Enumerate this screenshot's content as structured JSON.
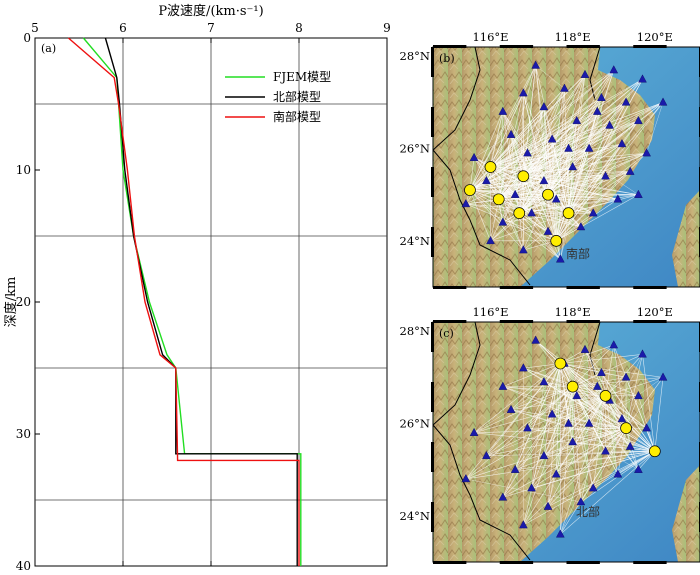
{
  "chart_data": [
    {
      "type": "line",
      "panel_label": "(a)",
      "xlabel": "P波速度/(km·s⁻¹)",
      "ylabel": "深度/km",
      "xlim": [
        5,
        9
      ],
      "ylim": [
        0,
        40
      ],
      "y_inverted": true,
      "x_ticks": [
        "5",
        "6",
        "7",
        "8",
        "9"
      ],
      "y_ticks": [
        "0",
        "10",
        "20",
        "30",
        "40"
      ],
      "grid_y": [
        5,
        15,
        25,
        35
      ],
      "grid_x": [
        6,
        7,
        8
      ],
      "legend": "top-right",
      "series": [
        {
          "name": "FJEM模型",
          "color": "#22dd22",
          "points": [
            [
              5.55,
              0
            ],
            [
              5.93,
              3
            ],
            [
              5.95,
              5
            ],
            [
              6.0,
              10
            ],
            [
              6.12,
              15
            ],
            [
              6.3,
              20
            ],
            [
              6.5,
              24
            ],
            [
              6.6,
              25
            ],
            [
              6.7,
              31.5
            ],
            [
              8.02,
              31.5
            ],
            [
              8.02,
              40
            ]
          ]
        },
        {
          "name": "北部模型",
          "color": "#000000",
          "points": [
            [
              5.8,
              0
            ],
            [
              5.93,
              3
            ],
            [
              5.96,
              5
            ],
            [
              6.02,
              10
            ],
            [
              6.12,
              15
            ],
            [
              6.28,
              20
            ],
            [
              6.45,
              24
            ],
            [
              6.6,
              25
            ],
            [
              6.6,
              31.5
            ],
            [
              7.98,
              31.5
            ],
            [
              7.98,
              40
            ]
          ]
        },
        {
          "name": "南部模型",
          "color": "#ee1111",
          "points": [
            [
              5.38,
              0
            ],
            [
              5.9,
              3
            ],
            [
              5.95,
              5
            ],
            [
              6.05,
              10
            ],
            [
              6.13,
              15
            ],
            [
              6.25,
              20
            ],
            [
              6.42,
              24
            ],
            [
              6.6,
              25
            ],
            [
              6.62,
              32
            ],
            [
              8.0,
              32
            ],
            [
              8.0,
              40
            ]
          ]
        }
      ]
    },
    {
      "type": "map",
      "panel_label": "(b)",
      "region_label": "南部",
      "x_ticks": [
        "116°E",
        "118°E",
        "120°E"
      ],
      "y_ticks": [
        "28°N",
        "26°N",
        "24°N"
      ],
      "lon_range": [
        114.6,
        121.1
      ],
      "lat_range": [
        23.0,
        28.2
      ],
      "triangle_color": "#1a1aaa",
      "circle_color": "#ffee00",
      "stations": [
        [
          117.1,
          27.8
        ],
        [
          118.3,
          27.6
        ],
        [
          119.0,
          27.7
        ],
        [
          119.7,
          27.5
        ],
        [
          116.8,
          27.2
        ],
        [
          117.8,
          27.3
        ],
        [
          118.7,
          27.1
        ],
        [
          119.3,
          27.0
        ],
        [
          120.2,
          27.0
        ],
        [
          116.3,
          26.8
        ],
        [
          117.3,
          26.9
        ],
        [
          118.1,
          26.6
        ],
        [
          118.9,
          26.5
        ],
        [
          119.6,
          26.6
        ],
        [
          116.5,
          26.3
        ],
        [
          117.5,
          26.2
        ],
        [
          118.4,
          26.0
        ],
        [
          119.2,
          26.1
        ],
        [
          119.8,
          25.9
        ],
        [
          115.6,
          25.8
        ],
        [
          116.9,
          25.9
        ],
        [
          118.0,
          25.6
        ],
        [
          118.8,
          25.4
        ],
        [
          119.4,
          25.5
        ],
        [
          115.9,
          25.3
        ],
        [
          116.6,
          25.0
        ],
        [
          117.6,
          24.9
        ],
        [
          118.5,
          24.6
        ],
        [
          119.1,
          24.9
        ],
        [
          115.4,
          24.8
        ],
        [
          116.3,
          24.4
        ],
        [
          117.4,
          24.2
        ],
        [
          118.2,
          24.3
        ],
        [
          116.8,
          23.8
        ],
        [
          117.7,
          23.6
        ],
        [
          116.0,
          24.0
        ],
        [
          117.0,
          24.6
        ],
        [
          117.3,
          25.3
        ],
        [
          118.6,
          26.8
        ],
        [
          117.9,
          26.0
        ],
        [
          119.6,
          25.0
        ]
      ],
      "sources": [
        [
          116.0,
          25.6
        ],
        [
          116.8,
          25.4
        ],
        [
          115.5,
          25.1
        ],
        [
          116.2,
          24.9
        ],
        [
          117.4,
          25.0
        ],
        [
          116.7,
          24.6
        ],
        [
          117.9,
          24.6
        ],
        [
          117.6,
          24.0
        ]
      ]
    },
    {
      "type": "map",
      "panel_label": "(c)",
      "region_label": "北部",
      "x_ticks": [
        "116°E",
        "118°E",
        "120°E"
      ],
      "y_ticks": [
        "28°N",
        "26°N",
        "24°N"
      ],
      "lon_range": [
        114.6,
        121.1
      ],
      "lat_range": [
        23.0,
        28.2
      ],
      "triangle_color": "#1a1aaa",
      "circle_color": "#ffee00",
      "stations": [
        [
          117.1,
          27.8
        ],
        [
          118.3,
          27.6
        ],
        [
          119.0,
          27.7
        ],
        [
          119.7,
          27.5
        ],
        [
          116.8,
          27.2
        ],
        [
          117.8,
          27.3
        ],
        [
          118.7,
          27.1
        ],
        [
          119.3,
          27.0
        ],
        [
          120.2,
          27.0
        ],
        [
          116.3,
          26.8
        ],
        [
          117.3,
          26.9
        ],
        [
          118.1,
          26.6
        ],
        [
          118.9,
          26.5
        ],
        [
          119.6,
          26.6
        ],
        [
          116.5,
          26.3
        ],
        [
          117.5,
          26.2
        ],
        [
          118.4,
          26.0
        ],
        [
          119.2,
          26.1
        ],
        [
          119.8,
          25.9
        ],
        [
          115.6,
          25.8
        ],
        [
          116.9,
          25.9
        ],
        [
          118.0,
          25.6
        ],
        [
          118.8,
          25.4
        ],
        [
          119.4,
          25.5
        ],
        [
          115.9,
          25.3
        ],
        [
          116.6,
          25.0
        ],
        [
          117.6,
          24.9
        ],
        [
          118.5,
          24.6
        ],
        [
          119.1,
          24.9
        ],
        [
          115.4,
          24.8
        ],
        [
          116.3,
          24.4
        ],
        [
          117.4,
          24.2
        ],
        [
          118.2,
          24.3
        ],
        [
          116.8,
          23.8
        ],
        [
          117.7,
          23.6
        ],
        [
          117.0,
          24.6
        ],
        [
          117.3,
          25.3
        ],
        [
          118.6,
          26.8
        ],
        [
          117.9,
          26.0
        ],
        [
          119.6,
          25.0
        ]
      ],
      "sources": [
        [
          117.7,
          27.3
        ],
        [
          118.0,
          26.8
        ],
        [
          118.8,
          26.6
        ],
        [
          119.3,
          25.9
        ],
        [
          120.0,
          25.4
        ]
      ]
    }
  ]
}
